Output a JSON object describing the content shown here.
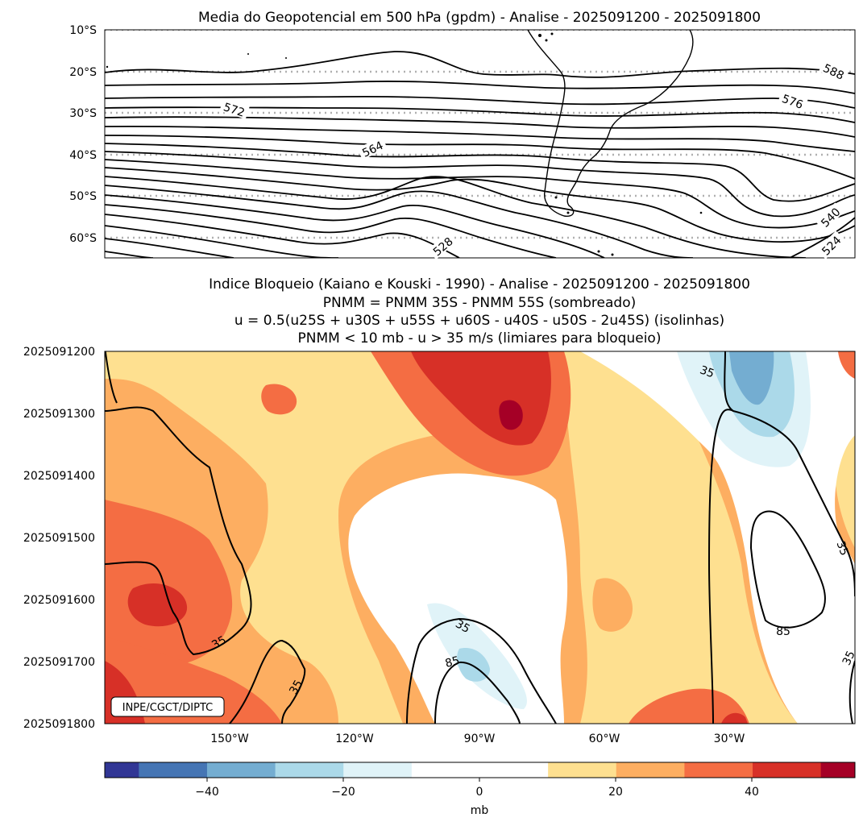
{
  "top_chart": {
    "title": "Media do Geopotencial em 500 hPa (gpdm) - Analise - 2025091200 - 2025091800",
    "lat_ticks": [
      "10°S",
      "20°S",
      "30°S",
      "40°S",
      "50°S",
      "60°S"
    ],
    "contour_labels": [
      "588",
      "576",
      "572",
      "564",
      "540",
      "528",
      "524"
    ]
  },
  "bottom_chart": {
    "title_lines": [
      "Indice Bloqueio (Kaiano e Kouski - 1990) - Analise - 2025091200 - 2025091800",
      "PNMM = PNMM 35S - PNMM 55S (sombreado)",
      "u = 0.5(u25S + u30S + u55S + u60S - u40S - u50S - 2u45S) (isolinhas)",
      "PNMM < 10 mb - u > 35 m/s (limiares para bloqueio)"
    ],
    "time_ticks": [
      "2025091200",
      "2025091300",
      "2025091400",
      "2025091500",
      "2025091600",
      "2025091700",
      "2025091800"
    ],
    "lon_ticks": [
      "150°W",
      "120°W",
      "90°W",
      "60°W",
      "30°W"
    ],
    "isoline_labels": [
      "35",
      "35",
      "35",
      "35",
      "35",
      "35",
      "85",
      "85"
    ],
    "credit": "INPE/CGCT/DIPTC"
  },
  "colorbar": {
    "ticks": [
      "−40",
      "−20",
      "0",
      "20",
      "40"
    ],
    "label": "mb",
    "colors": [
      "#313695",
      "#4575b4",
      "#74add1",
      "#abd9e9",
      "#e0f3f8",
      "#ffffff",
      "#ffffff",
      "#fee090",
      "#fdae61",
      "#f46d43",
      "#d73027",
      "#a50026"
    ]
  },
  "chart_data": [
    {
      "type": "contour-map",
      "title": "Media do Geopotencial em 500 hPa (gpdm) - Analise - 2025091200 - 2025091800",
      "ylabel_ticks": [
        "10°S",
        "20°S",
        "30°S",
        "40°S",
        "50°S",
        "60°S"
      ],
      "lat_range": [
        -65,
        -10
      ],
      "contour_levels_labeled": [
        588,
        576,
        572,
        564,
        540,
        528,
        524
      ],
      "units": "gpdm"
    },
    {
      "type": "heatmap",
      "title": "Indice Bloqueio (Kaiano e Kouski - 1990) - Analise - 2025091200 - 2025091800",
      "x": [
        -150,
        -120,
        -90,
        -60,
        -30
      ],
      "x_ticklabels": [
        "150°W",
        "120°W",
        "90°W",
        "60°W",
        "30°W"
      ],
      "x_range": [
        -180,
        0
      ],
      "y_ticklabels": [
        "2025091200",
        "2025091300",
        "2025091400",
        "2025091500",
        "2025091600",
        "2025091700",
        "2025091800"
      ],
      "shading_variable": "PNMM 35S - PNMM 55S (mb)",
      "isolines_variable": "u (m/s)",
      "isoline_levels": [
        35,
        85
      ],
      "colorbar": {
        "levels": [
          -55,
          -50,
          -40,
          -30,
          -20,
          -10,
          0,
          10,
          20,
          30,
          40,
          50,
          55
        ],
        "ticks": [
          -40,
          -20,
          0,
          20,
          40
        ],
        "label": "mb"
      }
    }
  ]
}
